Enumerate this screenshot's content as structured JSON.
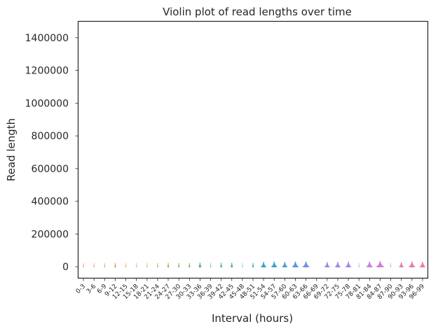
{
  "chart_data": {
    "type": "violin",
    "title": "Violin plot of read lengths over time",
    "xlabel": "Interval (hours)",
    "ylabel": "Read length",
    "ylim": [
      -70000,
      1500000
    ],
    "yticks": [
      0,
      200000,
      400000,
      600000,
      800000,
      1000000,
      1200000,
      1400000
    ],
    "ytick_labels": [
      "0",
      "200000",
      "400000",
      "600000",
      "800000",
      "1000000",
      "1200000",
      "1400000"
    ],
    "grid": false,
    "categories": [
      "0-3",
      "3-6",
      "6-9",
      "9-12",
      "12-15",
      "15-18",
      "18-21",
      "21-24",
      "24-27",
      "27-30",
      "30-33",
      "33-36",
      "36-39",
      "39-42",
      "42-45",
      "45-48",
      "48-51",
      "51-54",
      "54-57",
      "57-60",
      "60-63",
      "63-66",
      "66-69",
      "69-72",
      "72-75",
      "75-78",
      "78-81",
      "81-84",
      "84-87",
      "87-90",
      "90-93",
      "93-96",
      "96-99"
    ],
    "violins": [
      {
        "color": "#f3a8a8",
        "width": 0.06
      },
      {
        "color": "#f0b28a",
        "width": 0.06
      },
      {
        "color": "#e8b476",
        "width": 0.05
      },
      {
        "color": "#d99a40",
        "width": 0.12
      },
      {
        "color": "#e3bf86",
        "width": 0.05
      },
      {
        "color": "#d8c98a",
        "width": 0.05
      },
      {
        "color": "#c8cf8e",
        "width": 0.05
      },
      {
        "color": "#b7bf55",
        "width": 0.06
      },
      {
        "color": "#8fae3c",
        "width": 0.12
      },
      {
        "color": "#88b052",
        "width": 0.1
      },
      {
        "color": "#6eb06a",
        "width": 0.1
      },
      {
        "color": "#3fa96c",
        "width": 0.2
      },
      {
        "color": "#8fcfae",
        "width": 0.05
      },
      {
        "color": "#3aa99a",
        "width": 0.14
      },
      {
        "color": "#36a8a3",
        "width": 0.18
      },
      {
        "color": "#9ad4d4",
        "width": 0.06
      },
      {
        "color": "#3aa6b4",
        "width": 0.12
      },
      {
        "color": "#38a2c0",
        "width": 0.5
      },
      {
        "color": "#3c9fc8",
        "width": 0.55
      },
      {
        "color": "#4a9cd2",
        "width": 0.5
      },
      {
        "color": "#5a98da",
        "width": 0.6
      },
      {
        "color": "#6c93de",
        "width": 0.65
      },
      {
        "color": "#ffffff",
        "width": 0.0
      },
      {
        "color": "#8b8ee2",
        "width": 0.45
      },
      {
        "color": "#9a89e3",
        "width": 0.5
      },
      {
        "color": "#a985e3",
        "width": 0.55
      },
      {
        "color": "#d0b8ee",
        "width": 0.05
      },
      {
        "color": "#c77fe0",
        "width": 0.6
      },
      {
        "color": "#d47bd6",
        "width": 0.75
      },
      {
        "color": "#e6b4e4",
        "width": 0.05
      },
      {
        "color": "#e27ab8",
        "width": 0.4
      },
      {
        "color": "#e87aa8",
        "width": 0.6
      },
      {
        "color": "#ee7e98",
        "width": 0.55
      }
    ]
  }
}
